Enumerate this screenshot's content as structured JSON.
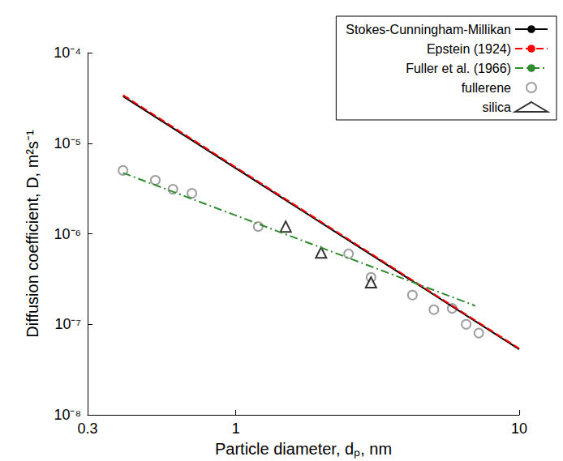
{
  "chart_data": {
    "type": "line",
    "xlabel": "Particle diameter, dₚ, nm",
    "ylabel": "Diffusion coefficient, D, m²s⁻¹",
    "log": true,
    "xlim": [
      0.3,
      10
    ],
    "ylim": [
      1e-08,
      0.0001
    ],
    "xticks": [
      0.3,
      1,
      10
    ],
    "yticks": [
      {
        "value": 1e-08,
        "label": "10⁻⁸"
      },
      {
        "value": 1e-07,
        "label": "10⁻⁷"
      },
      {
        "value": 1e-06,
        "label": "10⁻⁶"
      },
      {
        "value": 1e-05,
        "label": "10⁻⁵"
      },
      {
        "value": 0.0001,
        "label": "10⁻⁴"
      }
    ],
    "legend": "upper right",
    "series": [
      {
        "name": "Stokes-Cunningham-Millikan",
        "type": "line",
        "color": "#000000",
        "line_style": "solid",
        "x": [
          0.4,
          10
        ],
        "values": [
          3.3e-05,
          5.3e-08
        ]
      },
      {
        "name": "Epstein (1924)",
        "type": "line",
        "color": "#ff0000",
        "line_style": "dashed",
        "x": [
          0.4,
          10
        ],
        "values": [
          3.4e-05,
          5.4e-08
        ]
      },
      {
        "name": "Fuller et al. (1966)",
        "type": "line",
        "color": "#2e8b2e",
        "line_style": "dashdot",
        "x": [
          0.4,
          7
        ],
        "values": [
          4.7e-06,
          1.6e-07
        ]
      },
      {
        "name": "fullerene",
        "type": "scatter",
        "color": "#888888",
        "marker": "circle",
        "x": [
          0.4,
          0.52,
          0.6,
          0.7,
          1.2,
          2.5,
          3.0,
          4.2,
          5.0,
          5.8,
          6.5,
          7.2
        ],
        "values": [
          5e-06,
          3.9e-06,
          3.1e-06,
          2.8e-06,
          1.2e-06,
          6e-07,
          3.3e-07,
          2.1e-07,
          1.45e-07,
          1.5e-07,
          1e-07,
          8e-08
        ]
      },
      {
        "name": "silica",
        "type": "scatter",
        "color": "#000000",
        "marker": "triangle",
        "x": [
          1.5,
          2.0,
          3.0
        ],
        "values": [
          1.2e-06,
          6.2e-07,
          2.9e-07
        ]
      }
    ]
  }
}
